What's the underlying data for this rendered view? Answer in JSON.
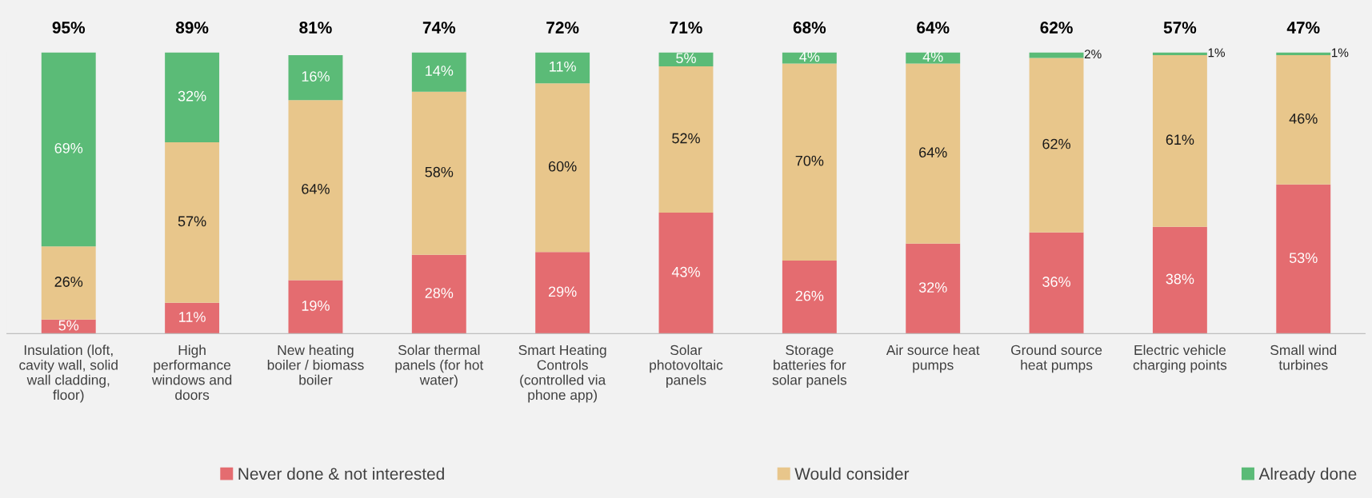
{
  "chart_data": {
    "type": "bar",
    "stacked": true,
    "categories": [
      "Insulation (loft,\ncavity wall, solid\nwall cladding,\nfloor)",
      "High\nperformance\nwindows and\ndoors",
      "New heating\nboiler / biomass\nboiler",
      "Solar thermal\npanels (for hot\nwater)",
      "Smart Heating\nControls\n(controlled via\nphone app)",
      "Solar\nphotovoltaic\npanels",
      "Storage\nbatteries for\nsolar panels",
      "Air source heat\npumps",
      "Ground source\nheat pumps",
      "Electric vehicle\ncharging points",
      "Small wind\nturbines"
    ],
    "series": [
      {
        "name": "Never done & not interested",
        "color": "#e46c70",
        "values": [
          5,
          11,
          19,
          28,
          29,
          43,
          26,
          32,
          36,
          38,
          53
        ],
        "value_labels": [
          "5%",
          "11%",
          "19%",
          "28%",
          "29%",
          "43%",
          "26%",
          "32%",
          "36%",
          "38%",
          "53%"
        ]
      },
      {
        "name": "Would consider",
        "color": "#e8c68b",
        "values": [
          26,
          57,
          64,
          58,
          60,
          52,
          70,
          64,
          62,
          61,
          46
        ],
        "value_labels": [
          "26%",
          "57%",
          "64%",
          "58%",
          "60%",
          "52%",
          "70%",
          "64%",
          "62%",
          "61%",
          "46%"
        ]
      },
      {
        "name": "Already done",
        "color": "#5bbb77",
        "values": [
          69,
          32,
          16,
          14,
          11,
          5,
          4,
          4,
          2,
          1,
          1
        ],
        "value_labels": [
          "69%",
          "32%",
          "16%",
          "14%",
          "11%",
          "5%",
          "4%",
          "4%",
          "2%",
          "1%",
          "1%"
        ]
      }
    ],
    "tick_labels": "x",
    "legend": "bottom",
    "annotations": [
      "95%",
      "89%",
      "81%",
      "74%",
      "72%",
      "71%",
      "68%",
      "64%",
      "62%",
      "57%",
      "47%"
    ]
  }
}
